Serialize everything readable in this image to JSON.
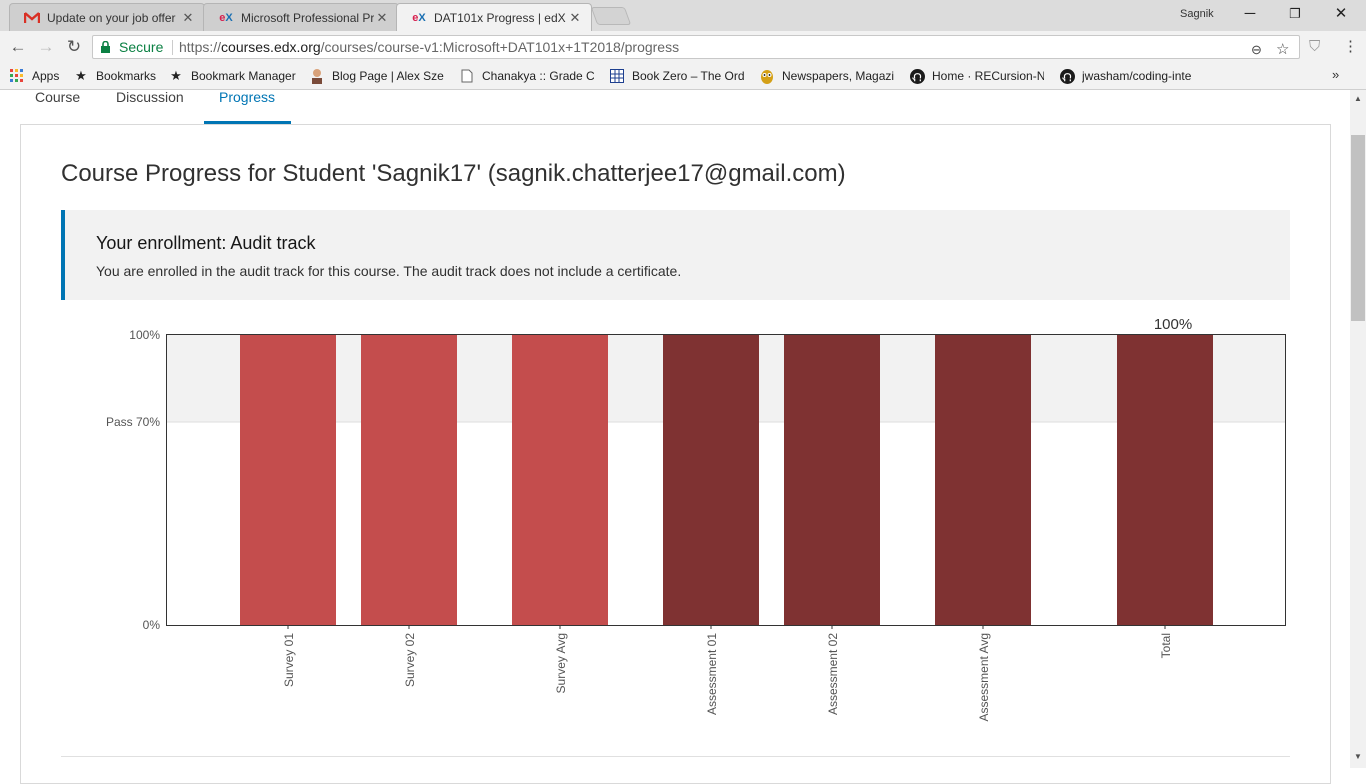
{
  "browser": {
    "tabs": [
      {
        "title": "Update on your job offer",
        "favicon": "gmail-icon"
      },
      {
        "title": "Microsoft Professional Pr",
        "favicon": "edx-icon"
      },
      {
        "title": "DAT101x Progress | edX",
        "favicon": "edx-icon",
        "active": true
      }
    ],
    "user": "Sagnik",
    "secure_label": "Secure",
    "url_scheme": "https://",
    "url_host": "courses.edx.org",
    "url_path": "/courses/course-v1:Microsoft+DAT101x+1T2018/progress",
    "bookmarks": [
      {
        "label": "Apps",
        "icon": "apps-grid-icon"
      },
      {
        "label": "Bookmarks",
        "icon": "star-icon"
      },
      {
        "label": "Bookmark Manager",
        "icon": "star-icon"
      },
      {
        "label": "Blog Page | Alex Szep",
        "icon": "avatar-icon"
      },
      {
        "label": "Chanakya :: Grade Ca",
        "icon": "page-icon"
      },
      {
        "label": "Book Zero – The Ord",
        "icon": "grid-icon"
      },
      {
        "label": "Newspapers, Magazi",
        "icon": "owl-icon"
      },
      {
        "label": "Home · RECursion-N",
        "icon": "github-icon"
      },
      {
        "label": "jwasham/coding-inte",
        "icon": "github-icon"
      }
    ]
  },
  "course_nav": {
    "tabs": [
      "Course",
      "Discussion",
      "Progress"
    ],
    "active": "Progress"
  },
  "page": {
    "heading": "Course Progress for Student 'Sagnik17' (sagnik.chatterjee17@gmail.com)",
    "enrollment_title": "Your enrollment: Audit track",
    "enrollment_message": "You are enrolled in the audit track for this course. The audit track does not include a certificate."
  },
  "colors": {
    "accent": "#0075b4",
    "survey_bar": "#c44d4d",
    "assessment_bar": "#7f3232",
    "pass_band": "#f2f2f2"
  },
  "chart_data": {
    "type": "bar",
    "categories": [
      "Survey 01",
      "Survey 02",
      "Survey Avg",
      "Assessment 01",
      "Assessment 02",
      "Assessment Avg",
      "Total"
    ],
    "values": [
      100,
      100,
      100,
      100,
      100,
      100,
      100
    ],
    "groups": [
      "survey",
      "survey",
      "survey",
      "assessment",
      "assessment",
      "assessment",
      "total"
    ],
    "y_ticks": [
      "100%",
      "Pass 70%",
      "0%"
    ],
    "y_tick_values": [
      100,
      70,
      0
    ],
    "ylim": [
      0,
      100
    ],
    "pass_threshold": 70,
    "total_label": "100%",
    "grid": false
  }
}
